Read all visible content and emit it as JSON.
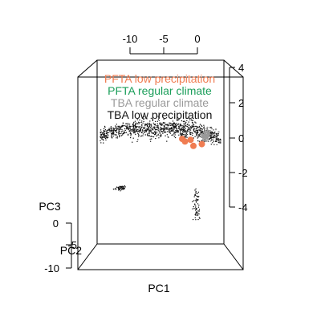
{
  "chart_data": {
    "type": "scatter",
    "title": "",
    "xlabel": "PC1",
    "ylabel": "PC2",
    "zlabel": "PC3",
    "top_axis_ticks": [
      "-10",
      "-5",
      "0"
    ],
    "right_axis_ticks": [
      "4",
      "2",
      "0",
      "-2",
      "-4"
    ],
    "left_axis_ticks": [
      "0",
      "-5",
      "-10"
    ],
    "legend_position": "top",
    "series": [
      {
        "name": "PFTA low precipitation",
        "color": "#f07d52",
        "marker": "circle-large",
        "points": [
          [
            0.3,
            -0.2
          ],
          [
            0.6,
            -0.45
          ],
          [
            0.9,
            -0.35
          ],
          [
            0.5,
            -0.1
          ],
          [
            0.2,
            -0.05
          ]
        ]
      },
      {
        "name": "PFTA regular climate",
        "color": "#1b9e5a",
        "marker": "circle",
        "points": []
      },
      {
        "name": "TBA regular climate",
        "color": "#9a9a9a",
        "marker": "circle",
        "points": [
          [
            1.0,
            0.3
          ],
          [
            1.2,
            0.4
          ],
          [
            1.4,
            0.5
          ],
          [
            1.1,
            0.6
          ],
          [
            1.3,
            0.2
          ],
          [
            0.9,
            0.45
          ],
          [
            1.5,
            0.35
          ],
          [
            1.25,
            0.55
          ]
        ]
      },
      {
        "name": "TBA low precipitation",
        "color": "#111111",
        "marker": "dot",
        "clusters": [
          {
            "label": "main arc",
            "n": 1000
          },
          {
            "label": "lower-left group",
            "n": 55
          },
          {
            "label": "lower-right group",
            "n": 70
          }
        ]
      }
    ]
  }
}
